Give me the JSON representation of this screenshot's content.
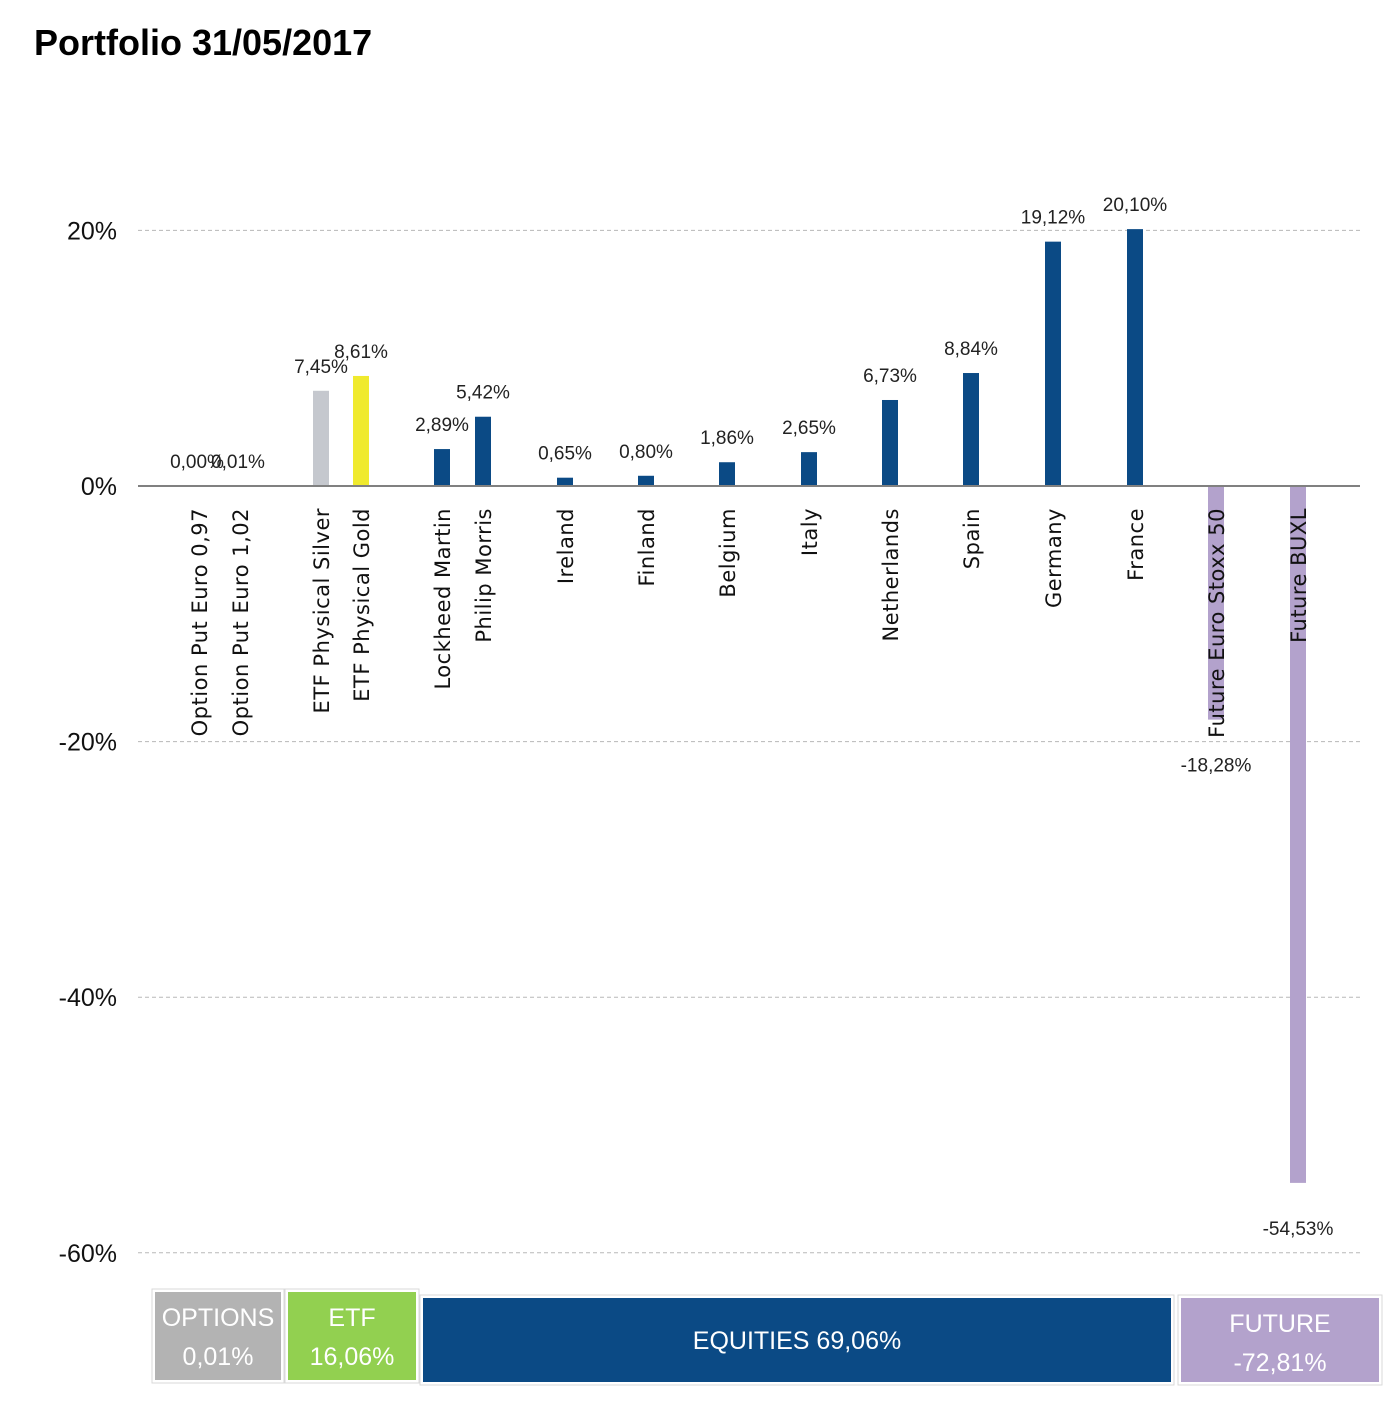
{
  "title": "Portfolio 31/05/2017",
  "chart_data": {
    "type": "bar",
    "title": "Portfolio 31/05/2017",
    "ylabel": "",
    "ylim": [
      -60,
      25
    ],
    "yticks": [
      20,
      0,
      -20,
      -40,
      -60
    ],
    "ytick_labels": [
      "20%",
      "0%",
      "-20%",
      "-40%",
      "-60%"
    ],
    "grid": true,
    "bars": [
      {
        "category": "Option Put Euro 0,97",
        "value": 0.0,
        "label": "0,00%",
        "color": "#bfc3c9",
        "group": "options"
      },
      {
        "category": "Option Put Euro 1,02",
        "value": 0.01,
        "label": "0,01%",
        "color": "#bfc3c9",
        "group": "options"
      },
      {
        "category": "ETF Physical Silver",
        "value": 7.45,
        "label": "7,45%",
        "color": "#c5c8ce",
        "group": "etf"
      },
      {
        "category": "ETF Physical Gold",
        "value": 8.61,
        "label": "8,61%",
        "color": "#f0ea2e",
        "group": "etf"
      },
      {
        "category": "Lockheed Martin",
        "value": 2.89,
        "label": "2,89%",
        "color": "#0b4a85",
        "group": "equities"
      },
      {
        "category": "Philip Morris",
        "value": 5.42,
        "label": "5,42%",
        "color": "#0b4a85",
        "group": "equities"
      },
      {
        "category": "Ireland",
        "value": 0.65,
        "label": "0,65%",
        "color": "#0b4a85",
        "group": "equities"
      },
      {
        "category": "Finland",
        "value": 0.8,
        "label": "0,80%",
        "color": "#0b4a85",
        "group": "equities"
      },
      {
        "category": "Belgium",
        "value": 1.86,
        "label": "1,86%",
        "color": "#0b4a85",
        "group": "equities"
      },
      {
        "category": "Italy",
        "value": 2.65,
        "label": "2,65%",
        "color": "#0b4a85",
        "group": "equities"
      },
      {
        "category": "Netherlands",
        "value": 6.73,
        "label": "6,73%",
        "color": "#0b4a85",
        "group": "equities"
      },
      {
        "category": "Spain",
        "value": 8.84,
        "label": "8,84%",
        "color": "#0b4a85",
        "group": "equities"
      },
      {
        "category": "Germany",
        "value": 19.12,
        "label": "19,12%",
        "color": "#0b4a85",
        "group": "equities"
      },
      {
        "category": "France",
        "value": 20.1,
        "label": "20,10%",
        "color": "#0b4a85",
        "group": "equities"
      },
      {
        "category": "Future Euro Stoxx 50",
        "value": -18.28,
        "label": "-18,28%",
        "color": "#b3a2cc",
        "group": "future"
      },
      {
        "category": "Future BUXL",
        "value": -54.53,
        "label": "-54,53%",
        "color": "#b3a2cc",
        "group": "future"
      }
    ],
    "groups": [
      {
        "id": "options",
        "name": "OPTIONS",
        "total": "0,01%",
        "color": "#b3b3b3"
      },
      {
        "id": "etf",
        "name": "ETF",
        "total": "16,06%",
        "color": "#92d050"
      },
      {
        "id": "equities",
        "name": "EQUITIES",
        "total": "69,06%",
        "color": "#0b4a85"
      },
      {
        "id": "future",
        "name": "FUTURE",
        "total": "-72,81%",
        "color": "#b3a2cc"
      }
    ]
  }
}
